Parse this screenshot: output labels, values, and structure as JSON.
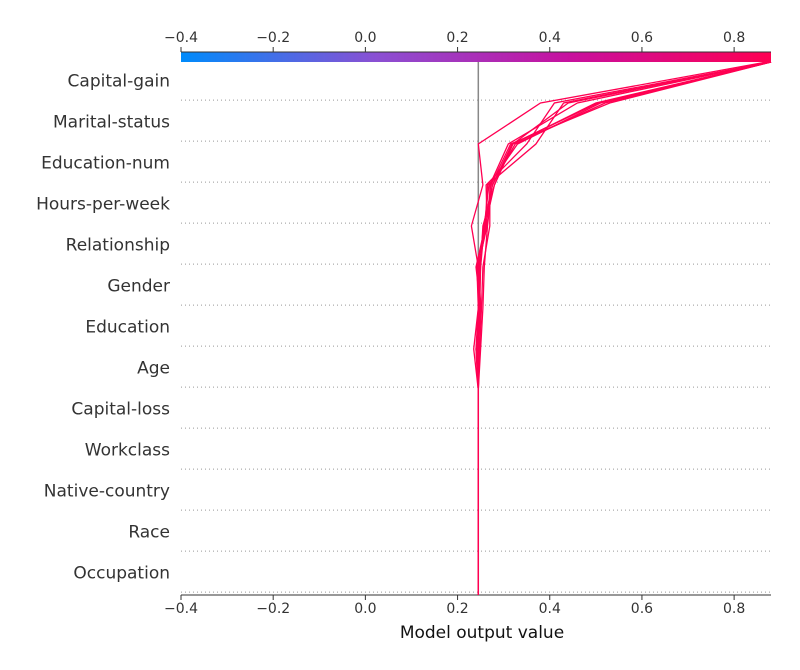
{
  "chart_data": {
    "type": "decision_plot",
    "xlabel": "Model output value",
    "xlim": [
      -0.4,
      0.88
    ],
    "x_ticks": [
      -0.4,
      -0.2,
      0.0,
      0.2,
      0.4,
      0.6,
      0.8
    ],
    "x_tick_labels": [
      "−0.4",
      "−0.2",
      "0.0",
      "0.2",
      "0.4",
      "0.6",
      "0.8"
    ],
    "base_value": 0.245,
    "colorbar": {
      "colors": [
        "#008bfb",
        "#8a50d3",
        "#c8109e",
        "#ff0052"
      ]
    },
    "line_color": "#ff0052",
    "features": [
      "Capital-gain",
      "Marital-status",
      "Education-num",
      "Hours-per-week",
      "Relationship",
      "Gender",
      "Education",
      "Age",
      "Capital-loss",
      "Workclass",
      "Native-country",
      "Race",
      "Occupation"
    ],
    "series": [
      {
        "values": [
          0.245,
          0.245,
          0.245,
          0.245,
          0.245,
          0.245,
          0.24,
          0.25,
          0.24,
          0.26,
          0.28,
          0.32,
          0.44,
          0.88
        ]
      },
      {
        "values": [
          0.245,
          0.245,
          0.245,
          0.245,
          0.245,
          0.245,
          0.245,
          0.245,
          0.245,
          0.23,
          0.255,
          0.245,
          0.38,
          0.87
        ]
      },
      {
        "values": [
          0.245,
          0.245,
          0.245,
          0.245,
          0.245,
          0.245,
          0.248,
          0.252,
          0.255,
          0.27,
          0.27,
          0.31,
          0.46,
          0.88
        ]
      },
      {
        "values": [
          0.245,
          0.245,
          0.245,
          0.245,
          0.245,
          0.245,
          0.24,
          0.245,
          0.25,
          0.255,
          0.28,
          0.32,
          0.5,
          0.88
        ]
      },
      {
        "values": [
          0.245,
          0.245,
          0.245,
          0.245,
          0.245,
          0.245,
          0.235,
          0.245,
          0.242,
          0.26,
          0.265,
          0.37,
          0.43,
          0.88
        ]
      },
      {
        "values": [
          0.245,
          0.245,
          0.245,
          0.245,
          0.245,
          0.245,
          0.25,
          0.255,
          0.258,
          0.265,
          0.275,
          0.325,
          0.52,
          0.88
        ]
      },
      {
        "values": [
          0.245,
          0.245,
          0.245,
          0.245,
          0.245,
          0.245,
          0.243,
          0.248,
          0.25,
          0.258,
          0.268,
          0.33,
          0.51,
          0.88
        ]
      },
      {
        "values": [
          0.245,
          0.245,
          0.245,
          0.245,
          0.245,
          0.245,
          0.246,
          0.249,
          0.246,
          0.262,
          0.272,
          0.315,
          0.53,
          0.88
        ]
      },
      {
        "values": [
          0.245,
          0.245,
          0.245,
          0.245,
          0.245,
          0.245,
          0.242,
          0.247,
          0.248,
          0.256,
          0.276,
          0.318,
          0.505,
          0.88
        ]
      },
      {
        "values": [
          0.245,
          0.245,
          0.245,
          0.245,
          0.245,
          0.245,
          0.244,
          0.251,
          0.244,
          0.264,
          0.262,
          0.35,
          0.41,
          0.88
        ]
      }
    ]
  }
}
